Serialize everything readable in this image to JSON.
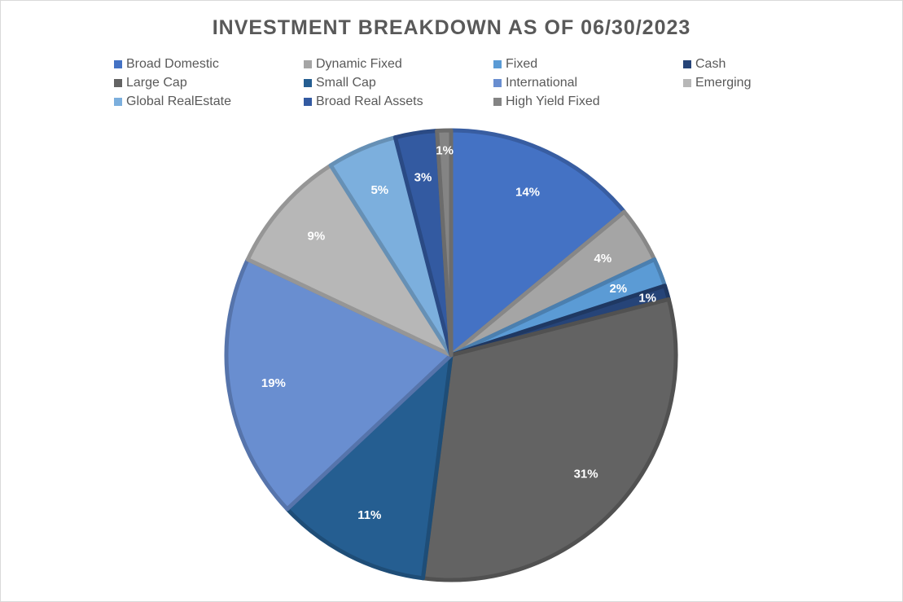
{
  "chart_data": {
    "type": "pie",
    "title": "INVESTMENT BREAKDOWN AS OF 06/30/2023",
    "legend_position": "top",
    "slices": [
      {
        "name": "Broad Domestic",
        "value": 14,
        "label": "14%",
        "color": "#4472c4"
      },
      {
        "name": "Dynamic Fixed",
        "value": 4,
        "label": "4%",
        "color": "#a5a5a5"
      },
      {
        "name": "Fixed",
        "value": 2,
        "label": "2%",
        "color": "#5b9bd5"
      },
      {
        "name": "Cash",
        "value": 1,
        "label": "1%",
        "color": "#264478"
      },
      {
        "name": "Large Cap",
        "value": 31,
        "label": "31%",
        "color": "#636363"
      },
      {
        "name": "Small Cap",
        "value": 11,
        "label": "11%",
        "color": "#255e91"
      },
      {
        "name": "International",
        "value": 19,
        "label": "19%",
        "color": "#698ed0"
      },
      {
        "name": "Emerging",
        "value": 9,
        "label": "9%",
        "color": "#b7b7b7"
      },
      {
        "name": "Global RealEstate",
        "value": 5,
        "label": "5%",
        "color": "#7cafdd"
      },
      {
        "name": "Broad Real Assets",
        "value": 3,
        "label": "3%",
        "color": "#335aa1"
      },
      {
        "name": "High Yield Fixed",
        "value": 1,
        "label": "1%",
        "color": "#848484"
      }
    ]
  }
}
